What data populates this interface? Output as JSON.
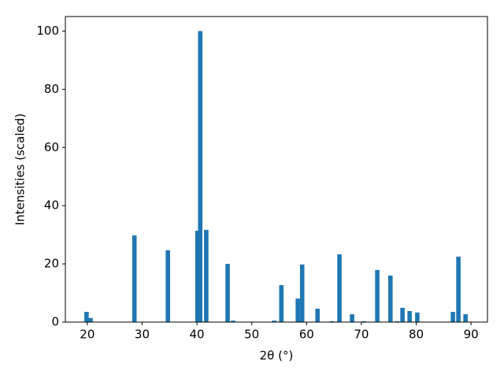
{
  "chart_data": {
    "type": "bar",
    "x": [
      19.86,
      20.6,
      28.6,
      34.7,
      40.1,
      40.6,
      41.7,
      45.6,
      46.6,
      54.1,
      55.4,
      58.4,
      59.2,
      62.0,
      64.6,
      66.0,
      68.3,
      70.5,
      72.9,
      75.3,
      76.5,
      77.5,
      78.8,
      80.2,
      86.7,
      87.7,
      89.0
    ],
    "values": [
      3.5,
      1.4,
      29.8,
      24.7,
      31.4,
      100,
      31.7,
      20,
      0.5,
      0.5,
      12.7,
      8.1,
      19.8,
      4.6,
      0.3,
      23.3,
      2.7,
      0.3,
      17.9,
      16,
      0.3,
      4.9,
      3.8,
      3.3,
      3.5,
      22.5,
      2.7
    ],
    "color": "#1f77b4",
    "xlabel": "2θ (°)",
    "ylabel": "Intensities (scaled)",
    "xlim": [
      16,
      93
    ],
    "ylim": [
      0,
      105
    ],
    "xticks": [
      20,
      30,
      40,
      50,
      60,
      70,
      80,
      90
    ],
    "yticks": [
      0,
      20,
      40,
      60,
      80,
      100
    ]
  }
}
